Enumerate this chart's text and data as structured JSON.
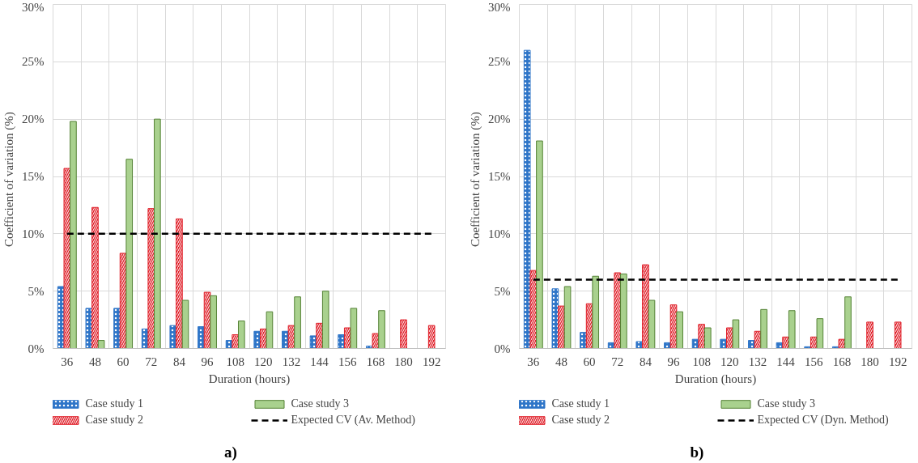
{
  "chart_data": [
    {
      "type": "bar",
      "xlabel": "Duration (hours)",
      "ylabel": "Coefficient  of variation  (%)",
      "categories": [
        "36",
        "48",
        "60",
        "72",
        "84",
        "96",
        "108",
        "120",
        "132",
        "144",
        "156",
        "168",
        "180",
        "192"
      ],
      "ylim": [
        0,
        30
      ],
      "yticks": [
        {
          "value": 0,
          "label": "0%"
        },
        {
          "value": 5,
          "label": "5%"
        },
        {
          "value": 10,
          "label": "10%"
        },
        {
          "value": 15,
          "label": "15%"
        },
        {
          "value": 20,
          "label": "20%"
        },
        {
          "value": 25,
          "label": "25%"
        },
        {
          "value": 30,
          "label": "30%"
        }
      ],
      "grid": true,
      "legend": "bottom",
      "series": [
        {
          "name": "Case study 1",
          "color": "#2e75c8",
          "values": [
            5.4,
            3.5,
            3.5,
            1.7,
            2.0,
            1.9,
            0.7,
            1.5,
            1.5,
            1.1,
            1.2,
            0.2,
            null,
            null
          ]
        },
        {
          "name": "Case study 2",
          "color": "#e0202a",
          "values": [
            15.7,
            12.3,
            8.3,
            12.2,
            11.3,
            4.9,
            1.2,
            1.7,
            2.0,
            2.2,
            1.8,
            1.3,
            2.5,
            2.0
          ]
        },
        {
          "name": "Case study 3",
          "color": "#a9d18e",
          "values": [
            19.8,
            0.7,
            16.5,
            20.0,
            4.2,
            4.6,
            2.4,
            3.2,
            4.5,
            5.0,
            3.5,
            3.3,
            null,
            null
          ]
        },
        {
          "name": "Expected CV (Av. Method)",
          "type": "line",
          "line_style": "dashed",
          "color": "#000000",
          "values": [
            10,
            10,
            10,
            10,
            10,
            10,
            10,
            10,
            10,
            10,
            10,
            10,
            10,
            10
          ]
        }
      ],
      "annotations": [
        "a)"
      ]
    },
    {
      "type": "bar",
      "xlabel": "Duration (hours)",
      "ylabel": "Coefficient  of variation  (%)",
      "categories": [
        "36",
        "48",
        "60",
        "72",
        "84",
        "96",
        "108",
        "120",
        "132",
        "144",
        "156",
        "168",
        "180",
        "192"
      ],
      "ylim": [
        0,
        30
      ],
      "yticks": [
        {
          "value": 0,
          "label": "0%"
        },
        {
          "value": 5,
          "label": "5%"
        },
        {
          "value": 10,
          "label": "10%"
        },
        {
          "value": 15,
          "label": "15%"
        },
        {
          "value": 20,
          "label": "20%"
        },
        {
          "value": 25,
          "label": "25%"
        },
        {
          "value": 30,
          "label": "30%"
        }
      ],
      "grid": true,
      "legend": "bottom",
      "series": [
        {
          "name": "Case study 1",
          "color": "#2e75c8",
          "values": [
            26.0,
            5.2,
            1.4,
            0.5,
            0.6,
            0.5,
            0.8,
            0.8,
            0.7,
            0.5,
            0.15,
            0.15,
            null,
            null
          ]
        },
        {
          "name": "Case study 2",
          "color": "#e0202a",
          "values": [
            6.8,
            3.7,
            3.9,
            6.6,
            7.3,
            3.8,
            2.1,
            1.8,
            1.5,
            1.0,
            1.0,
            0.8,
            2.3,
            2.3
          ]
        },
        {
          "name": "Case study 3",
          "color": "#a9d18e",
          "values": [
            18.1,
            5.4,
            6.3,
            6.5,
            4.2,
            3.2,
            1.8,
            2.5,
            3.4,
            3.3,
            2.6,
            4.5,
            null,
            null
          ]
        },
        {
          "name": "Expected CV (Dyn. Method)",
          "type": "line",
          "line_style": "dashed",
          "color": "#000000",
          "values": [
            6,
            6,
            6,
            6,
            6,
            6,
            6,
            6,
            6,
            6,
            6,
            6,
            6,
            6
          ]
        }
      ],
      "annotations": [
        "b)"
      ]
    }
  ]
}
